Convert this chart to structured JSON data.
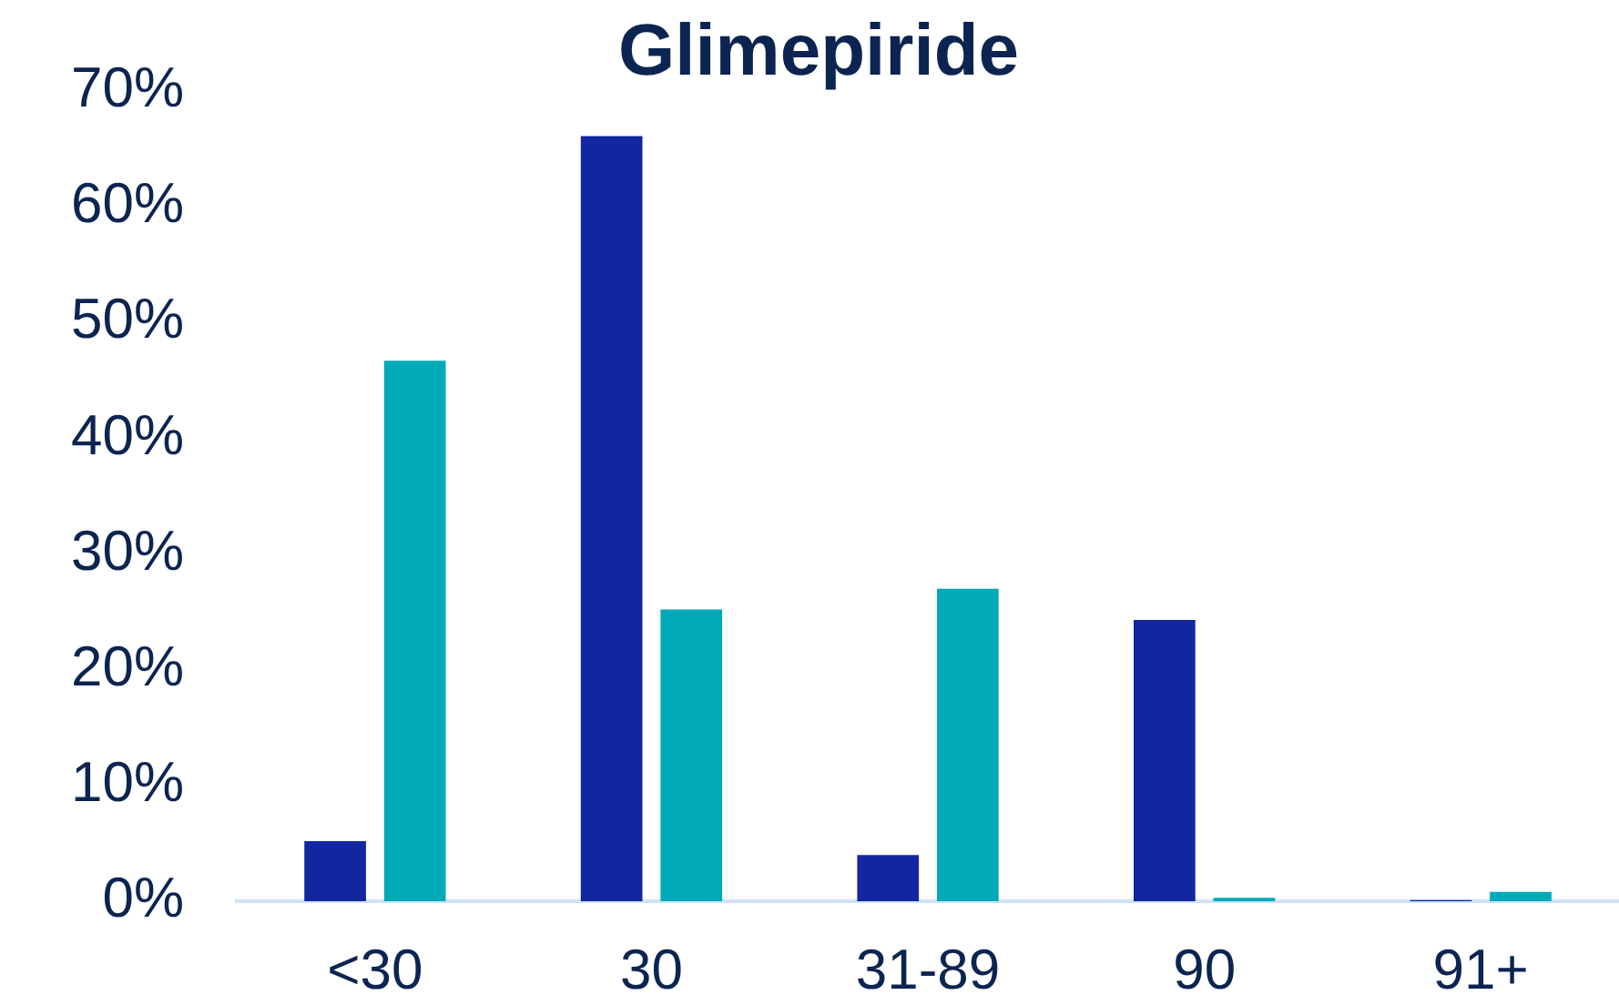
{
  "chart_data": {
    "type": "bar",
    "title": "Glimepiride",
    "categories": [
      "<30",
      "30",
      "31-89",
      "90",
      "91+"
    ],
    "series": [
      {
        "color": "#1226a0",
        "values": [
          5.2,
          66.1,
          4.0,
          24.3,
          0.1
        ]
      },
      {
        "color": "#00aab8",
        "values": [
          46.7,
          25.2,
          27.0,
          0.3,
          0.8
        ]
      }
    ],
    "ylim": [
      0,
      70
    ],
    "yticks": [
      {
        "value": 0,
        "label": "0%"
      },
      {
        "value": 10,
        "label": "10%"
      },
      {
        "value": 20,
        "label": "20%"
      },
      {
        "value": 30,
        "label": "30%"
      },
      {
        "value": 40,
        "label": "40%"
      },
      {
        "value": 50,
        "label": "50%"
      },
      {
        "value": 60,
        "label": "60%"
      },
      {
        "value": 70,
        "label": "70%"
      }
    ],
    "grid": false,
    "legend": false
  }
}
